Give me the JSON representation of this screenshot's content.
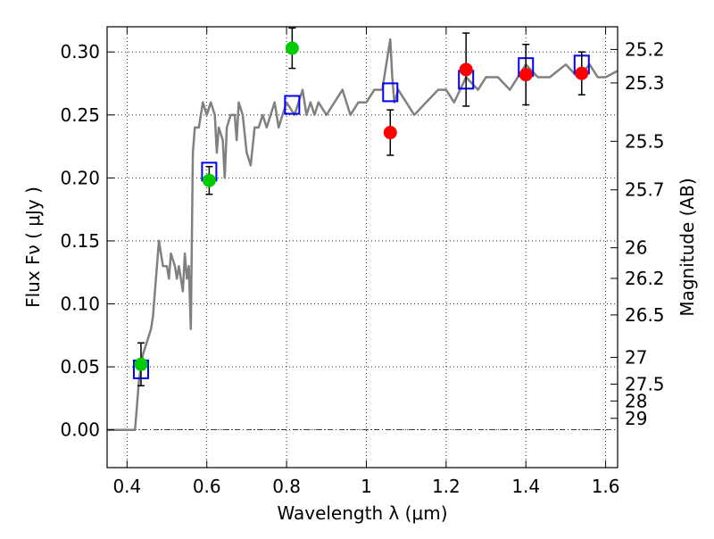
{
  "chart_data": {
    "type": "scatter",
    "xlabel": "Wavelength  λ (μm)",
    "ylabel": "Flux  Fν  ( μJy )",
    "ylabel_right": "Magnitude (AB)",
    "xlim": [
      0.35,
      1.63
    ],
    "ylim": [
      -0.03,
      0.32
    ],
    "grid": true,
    "x_ticks": [
      {
        "value": 0.4,
        "label": "0.4"
      },
      {
        "value": 0.6,
        "label": "0.6"
      },
      {
        "value": 0.8,
        "label": "0.8"
      },
      {
        "value": 1.0,
        "label": "1"
      },
      {
        "value": 1.2,
        "label": "1.2"
      },
      {
        "value": 1.4,
        "label": "1.4"
      },
      {
        "value": 1.6,
        "label": "1.6"
      }
    ],
    "y_ticks": [
      {
        "value": 0.0,
        "label": "0.00"
      },
      {
        "value": 0.05,
        "label": "0.05"
      },
      {
        "value": 0.1,
        "label": "0.10"
      },
      {
        "value": 0.15,
        "label": "0.15"
      },
      {
        "value": 0.2,
        "label": "0.20"
      },
      {
        "value": 0.25,
        "label": "0.25"
      },
      {
        "value": 0.3,
        "label": "0.30"
      }
    ],
    "right_ticks": [
      {
        "mag": 25.2,
        "label": "25.2"
      },
      {
        "mag": 25.3,
        "label": "25.3"
      },
      {
        "mag": 25.5,
        "label": "25.5"
      },
      {
        "mag": 25.7,
        "label": "25.7"
      },
      {
        "mag": 26,
        "label": "26"
      },
      {
        "mag": 26.2,
        "label": "26.2"
      },
      {
        "mag": 26.5,
        "label": "26.5"
      },
      {
        "mag": 27,
        "label": "27"
      },
      {
        "mag": 27.5,
        "label": "27.5"
      },
      {
        "mag": 28,
        "label": "28"
      },
      {
        "mag": 29,
        "label": "29"
      }
    ],
    "zero_line": {
      "y": 0.0,
      "style": "dash-dot"
    },
    "model_spectrum": {
      "color": "#808080",
      "x": [
        0.35,
        0.42,
        0.43,
        0.44,
        0.46,
        0.465,
        0.47,
        0.48,
        0.485,
        0.49,
        0.5,
        0.505,
        0.51,
        0.52,
        0.525,
        0.53,
        0.535,
        0.54,
        0.545,
        0.55,
        0.555,
        0.56,
        0.565,
        0.57,
        0.58,
        0.59,
        0.6,
        0.61,
        0.62,
        0.625,
        0.63,
        0.64,
        0.645,
        0.65,
        0.66,
        0.67,
        0.675,
        0.68,
        0.69,
        0.7,
        0.71,
        0.72,
        0.73,
        0.74,
        0.75,
        0.76,
        0.77,
        0.78,
        0.79,
        0.8,
        0.82,
        0.84,
        0.85,
        0.86,
        0.87,
        0.88,
        0.9,
        0.92,
        0.94,
        0.96,
        0.98,
        1.0,
        1.02,
        1.04,
        1.05,
        1.06,
        1.065,
        1.07,
        1.08,
        1.1,
        1.12,
        1.15,
        1.18,
        1.2,
        1.22,
        1.25,
        1.28,
        1.3,
        1.33,
        1.36,
        1.4,
        1.43,
        1.46,
        1.5,
        1.53,
        1.56,
        1.58,
        1.6,
        1.63
      ],
      "y": [
        0.0,
        0.0,
        0.04,
        0.06,
        0.08,
        0.09,
        0.11,
        0.15,
        0.14,
        0.13,
        0.13,
        0.12,
        0.14,
        0.13,
        0.12,
        0.13,
        0.12,
        0.11,
        0.14,
        0.12,
        0.13,
        0.08,
        0.22,
        0.24,
        0.24,
        0.26,
        0.25,
        0.26,
        0.25,
        0.22,
        0.24,
        0.23,
        0.2,
        0.24,
        0.25,
        0.25,
        0.23,
        0.26,
        0.25,
        0.22,
        0.21,
        0.24,
        0.24,
        0.25,
        0.24,
        0.25,
        0.26,
        0.24,
        0.25,
        0.26,
        0.25,
        0.27,
        0.25,
        0.26,
        0.25,
        0.26,
        0.25,
        0.26,
        0.27,
        0.25,
        0.26,
        0.26,
        0.27,
        0.27,
        0.29,
        0.31,
        0.28,
        0.26,
        0.27,
        0.26,
        0.25,
        0.26,
        0.27,
        0.27,
        0.26,
        0.28,
        0.27,
        0.28,
        0.28,
        0.27,
        0.29,
        0.28,
        0.28,
        0.29,
        0.28,
        0.29,
        0.28,
        0.28,
        0.285
      ]
    },
    "series": [
      {
        "marker": "circle",
        "color": "#00cc00",
        "points": [
          {
            "x": 0.435,
            "y": 0.052,
            "err": 0.017
          },
          {
            "x": 0.606,
            "y": 0.198,
            "err": 0.011
          },
          {
            "x": 0.814,
            "y": 0.303,
            "err": 0.016
          }
        ]
      },
      {
        "marker": "circle",
        "color": "#ff0000",
        "points": [
          {
            "x": 1.06,
            "y": 0.236,
            "err": 0.018
          },
          {
            "x": 1.25,
            "y": 0.286,
            "err": 0.029
          },
          {
            "x": 1.4,
            "y": 0.282,
            "err": 0.024
          },
          {
            "x": 1.54,
            "y": 0.283,
            "err": 0.017
          }
        ]
      },
      {
        "marker": "open-square",
        "color": "#0000ff",
        "points": [
          {
            "x": 0.435,
            "y": 0.048
          },
          {
            "x": 0.606,
            "y": 0.205
          },
          {
            "x": 0.814,
            "y": 0.258
          },
          {
            "x": 1.06,
            "y": 0.268
          },
          {
            "x": 1.25,
            "y": 0.278
          },
          {
            "x": 1.4,
            "y": 0.288
          },
          {
            "x": 1.54,
            "y": 0.29
          }
        ]
      }
    ]
  }
}
